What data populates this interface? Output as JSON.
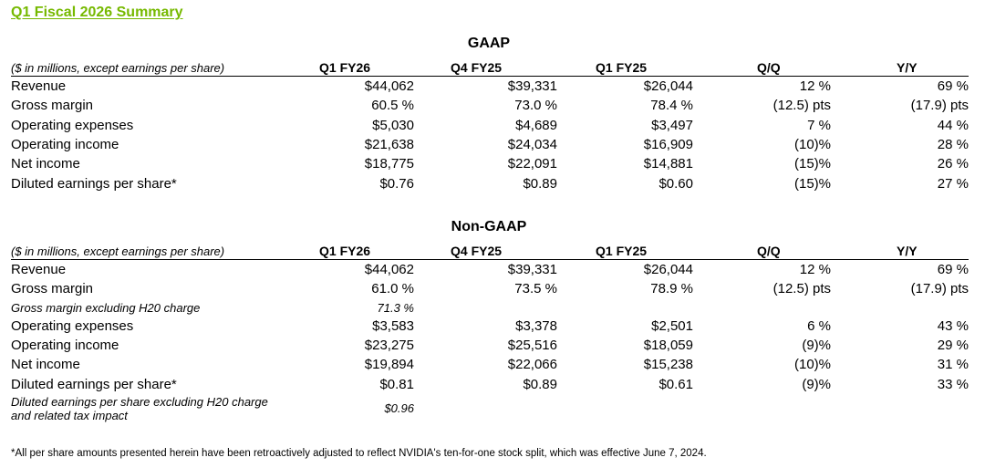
{
  "title": "Q1 Fiscal 2026 Summary",
  "gaap": {
    "section_title": "GAAP",
    "header": [
      "($ in millions, except earnings per share)",
      "Q1 FY26",
      "Q4 FY25",
      "Q1 FY25",
      "Q/Q",
      "Y/Y"
    ],
    "rows": [
      {
        "label": "Revenue",
        "q1fy26": "$44,062",
        "q4fy25": "$39,331",
        "q1fy25": "$26,044",
        "qq": "12 %",
        "yy": "69 %"
      },
      {
        "label": "Gross margin",
        "q1fy26": "60.5 %",
        "q4fy25": "73.0 %",
        "q1fy25": "78.4 %",
        "qq": "(12.5) pts",
        "yy": "(17.9) pts"
      },
      {
        "label": "Operating expenses",
        "q1fy26": "$5,030",
        "q4fy25": "$4,689",
        "q1fy25": "$3,497",
        "qq": "7 %",
        "yy": "44 %"
      },
      {
        "label": "Operating income",
        "q1fy26": "$21,638",
        "q4fy25": "$24,034",
        "q1fy25": "$16,909",
        "qq": "(10)%",
        "yy": "28 %"
      },
      {
        "label": "Net income",
        "q1fy26": "$18,775",
        "q4fy25": "$22,091",
        "q1fy25": "$14,881",
        "qq": "(15)%",
        "yy": "26 %"
      },
      {
        "label": "Diluted earnings per share*",
        "q1fy26": "$0.76",
        "q4fy25": "$0.89",
        "q1fy25": "$0.60",
        "qq": "(15)%",
        "yy": "27 %"
      }
    ]
  },
  "nongaap": {
    "section_title": "Non-GAAP",
    "header": [
      "($ in millions, except earnings per share)",
      "Q1 FY26",
      "Q4 FY25",
      "Q1 FY25",
      "Q/Q",
      "Y/Y"
    ],
    "rows": [
      {
        "label": "Revenue",
        "q1fy26": "$44,062",
        "q4fy25": "$39,331",
        "q1fy25": "$26,044",
        "qq": "12 %",
        "yy": "69 %"
      },
      {
        "label": "Gross margin",
        "q1fy26": "61.0 %",
        "q4fy25": "73.5 %",
        "q1fy25": "78.9 %",
        "qq": "(12.5) pts",
        "yy": "(17.9) pts"
      },
      {
        "label": "Gross margin excluding H20 charge",
        "q1fy26": "71.3 %",
        "q4fy25": "",
        "q1fy25": "",
        "qq": "",
        "yy": ""
      },
      {
        "label": "Operating expenses",
        "q1fy26": "$3,583",
        "q4fy25": "$3,378",
        "q1fy25": "$2,501",
        "qq": "6 %",
        "yy": "43 %"
      },
      {
        "label": "Operating income",
        "q1fy26": "$23,275",
        "q4fy25": "$25,516",
        "q1fy25": "$18,059",
        "qq": "(9)%",
        "yy": "29 %"
      },
      {
        "label": "Net income",
        "q1fy26": "$19,894",
        "q4fy25": "$22,066",
        "q1fy25": "$15,238",
        "qq": "(10)%",
        "yy": "31 %"
      },
      {
        "label": "Diluted earnings per share*",
        "q1fy26": "$0.81",
        "q4fy25": "$0.89",
        "q1fy25": "$0.61",
        "qq": "(9)%",
        "yy": "33 %"
      },
      {
        "label": "Diluted earnings per share excluding H20 charge and related tax impact",
        "q1fy26": "$0.96",
        "q4fy25": "",
        "q1fy25": "",
        "qq": "",
        "yy": ""
      }
    ]
  },
  "footnote": "*All per share amounts presented herein have been retroactively adjusted to reflect NVIDIA's ten-for-one stock split, which was effective June 7, 2024.",
  "colors": {
    "title_green": "#76b900"
  }
}
